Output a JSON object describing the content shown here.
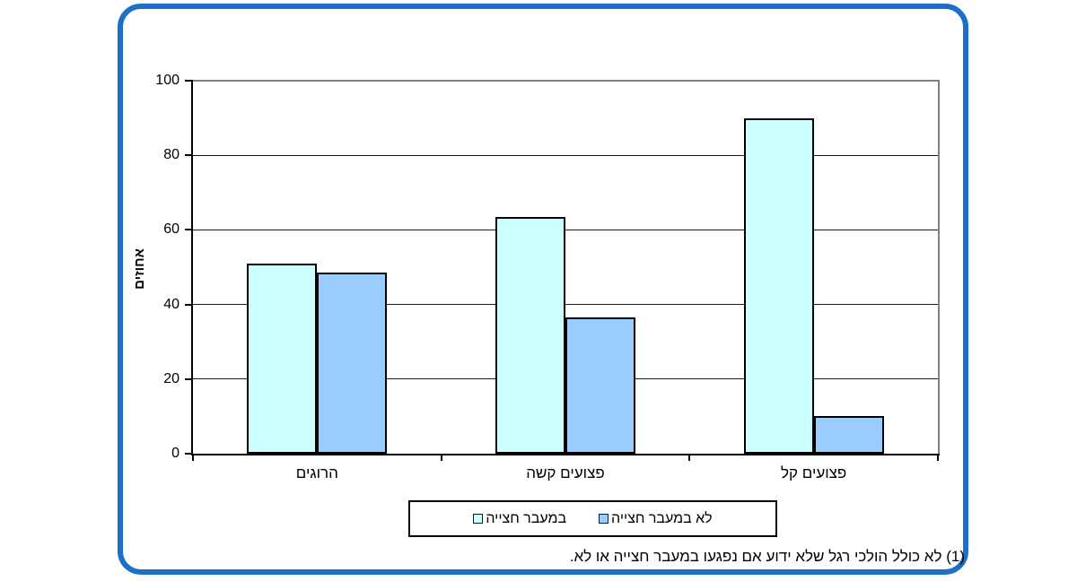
{
  "frame": {
    "border_color": "#1C70C8"
  },
  "y_axis": {
    "title": "אחוזים",
    "ticks": [
      0,
      20,
      40,
      60,
      80,
      100
    ]
  },
  "chart_data": {
    "type": "bar",
    "title": "",
    "categories": [
      "הרוגים",
      "פצועים קשה",
      "פצועים קל"
    ],
    "series": [
      {
        "name": "במעבר חצייה",
        "color": "#CCFFFF",
        "values": [
          51,
          63.5,
          90
        ]
      },
      {
        "name": "לא במעבר חצייה",
        "color": "#99CCFF",
        "values": [
          48.5,
          36.5,
          10
        ]
      }
    ],
    "xlabel": "",
    "ylabel": "אחוזים",
    "ylim": [
      0,
      100
    ],
    "grid": true,
    "legend_position": "bottom"
  },
  "footnote": "(1) לא כולל הולכי רגל שלא ידוע אם נפגעו במעבר חצייה או לא."
}
